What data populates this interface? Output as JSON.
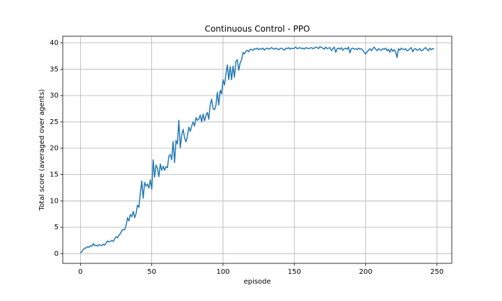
{
  "chart_data": {
    "type": "line",
    "title": "Continuous Control - PPO",
    "x_label": "episode",
    "y_label": "Total score (averaged over agents)",
    "x": [
      0,
      1,
      2,
      3,
      4,
      5,
      6,
      7,
      8,
      9,
      10,
      11,
      12,
      13,
      14,
      15,
      16,
      17,
      18,
      19,
      20,
      21,
      22,
      23,
      24,
      25,
      26,
      27,
      28,
      29,
      30,
      31,
      32,
      33,
      34,
      35,
      36,
      37,
      38,
      39,
      40,
      41,
      42,
      43,
      44,
      45,
      46,
      47,
      48,
      49,
      50,
      51,
      52,
      53,
      54,
      55,
      56,
      57,
      58,
      59,
      60,
      61,
      62,
      63,
      64,
      65,
      66,
      67,
      68,
      69,
      70,
      71,
      72,
      73,
      74,
      75,
      76,
      77,
      78,
      79,
      80,
      81,
      82,
      83,
      84,
      85,
      86,
      87,
      88,
      89,
      90,
      91,
      92,
      93,
      94,
      95,
      96,
      97,
      98,
      99,
      100,
      101,
      102,
      103,
      104,
      105,
      106,
      107,
      108,
      109,
      110,
      111,
      112,
      113,
      114,
      115,
      116,
      117,
      118,
      119,
      120,
      121,
      122,
      123,
      124,
      125,
      126,
      127,
      128,
      129,
      130,
      131,
      132,
      133,
      134,
      135,
      136,
      137,
      138,
      139,
      140,
      141,
      142,
      143,
      144,
      145,
      146,
      147,
      148,
      149,
      150,
      151,
      152,
      153,
      154,
      155,
      156,
      157,
      158,
      159,
      160,
      161,
      162,
      163,
      164,
      165,
      166,
      167,
      168,
      169,
      170,
      171,
      172,
      173,
      174,
      175,
      176,
      177,
      178,
      179,
      180,
      181,
      182,
      183,
      184,
      185,
      186,
      187,
      188,
      189,
      190,
      191,
      192,
      193,
      194,
      195,
      196,
      197,
      198,
      199,
      200,
      201,
      202,
      203,
      204,
      205,
      206,
      207,
      208,
      209,
      210,
      211,
      212,
      213,
      214,
      215,
      216,
      217,
      218,
      219,
      220,
      221,
      222,
      223,
      224,
      225,
      226,
      227,
      228,
      229,
      230,
      231,
      232,
      233,
      234,
      235,
      236,
      237,
      238,
      239,
      240,
      241,
      242,
      243,
      244,
      245,
      246,
      247,
      248
    ],
    "values": [
      0.1,
      0.4,
      0.8,
      1.0,
      1.1,
      1.3,
      1.2,
      1.5,
      1.4,
      1.9,
      1.5,
      1.6,
      1.4,
      1.7,
      1.6,
      1.5,
      1.8,
      1.6,
      2.0,
      2.4,
      2.2,
      2.3,
      2.5,
      2.3,
      2.8,
      3.2,
      3.0,
      3.5,
      3.8,
      4.3,
      4.6,
      4.5,
      5.3,
      6.8,
      6.2,
      7.4,
      7.0,
      8.0,
      6.8,
      7.6,
      9.2,
      8.8,
      11.5,
      13.8,
      10.5,
      13.5,
      12.8,
      13.2,
      12.4,
      14.0,
      12.2,
      17.8,
      14.5,
      16.8,
      16.2,
      14.6,
      17.0,
      15.8,
      16.6,
      15.8,
      16.5,
      16.3,
      18.5,
      18.8,
      17.8,
      21.3,
      17.3,
      21.5,
      20.8,
      25.3,
      20.1,
      22.5,
      23.6,
      22.0,
      21.2,
      22.3,
      24.0,
      23.2,
      24.2,
      25.0,
      24.2,
      25.8,
      25.3,
      25.5,
      26.3,
      25.0,
      26.5,
      25.2,
      26.2,
      26.8,
      25.5,
      28.3,
      29.3,
      27.5,
      27.3,
      28.1,
      30.6,
      28.2,
      31.0,
      30.3,
      33.0,
      32.0,
      34.0,
      35.8,
      33.0,
      35.5,
      33.0,
      35.6,
      33.5,
      36.5,
      36.8,
      34.8,
      36.2,
      36.8,
      38.2,
      37.9,
      38.4,
      38.6,
      38.3,
      38.8,
      38.7,
      38.6,
      38.9,
      38.8,
      39.0,
      38.7,
      38.9,
      38.8,
      39.0,
      38.6,
      38.9,
      39.0,
      38.8,
      38.9,
      39.1,
      38.9,
      38.8,
      39.0,
      38.9,
      38.7,
      38.9,
      39.0,
      38.8,
      38.6,
      39.0,
      38.9,
      39.1,
      38.8,
      39.0,
      38.9,
      39.0,
      39.2,
      38.9,
      39.0,
      39.1,
      38.9,
      39.0,
      38.8,
      39.1,
      39.0,
      38.9,
      39.0,
      39.1,
      38.9,
      39.0,
      39.2,
      39.1,
      38.9,
      39.3,
      39.1,
      39.0,
      38.8,
      39.2,
      38.9,
      39.0,
      39.1,
      38.5,
      38.9,
      39.2,
      38.2,
      38.9,
      39.0,
      38.8,
      39.1,
      38.6,
      38.9,
      39.0,
      38.8,
      39.2,
      38.1,
      38.9,
      39.0,
      38.8,
      38.9,
      38.7,
      39.0,
      38.8,
      38.9,
      38.6,
      38.2,
      37.9,
      38.3,
      38.6,
      38.9,
      38.5,
      38.9,
      39.2,
      38.8,
      38.5,
      38.9,
      38.7,
      38.6,
      38.9,
      38.8,
      39.0,
      38.5,
      38.8,
      38.2,
      38.9,
      38.4,
      38.7,
      38.3,
      37.2,
      38.9,
      38.6,
      39.0,
      38.8,
      38.7,
      38.9,
      38.5,
      38.6,
      38.9,
      39.1,
      38.3,
      38.8,
      38.9,
      38.6,
      38.7,
      38.9,
      38.5,
      38.6,
      38.9,
      39.1,
      38.8,
      38.5,
      39.0,
      38.7,
      38.9,
      38.9
    ],
    "color": "#1f77b4",
    "xlim": [
      -12.4,
      260.4
    ],
    "ylim": [
      -1.86,
      41.26
    ],
    "xticks": [
      0,
      50,
      100,
      150,
      200,
      250
    ],
    "yticks": [
      0,
      5,
      10,
      15,
      20,
      25,
      30,
      35,
      40
    ],
    "grid": true
  }
}
